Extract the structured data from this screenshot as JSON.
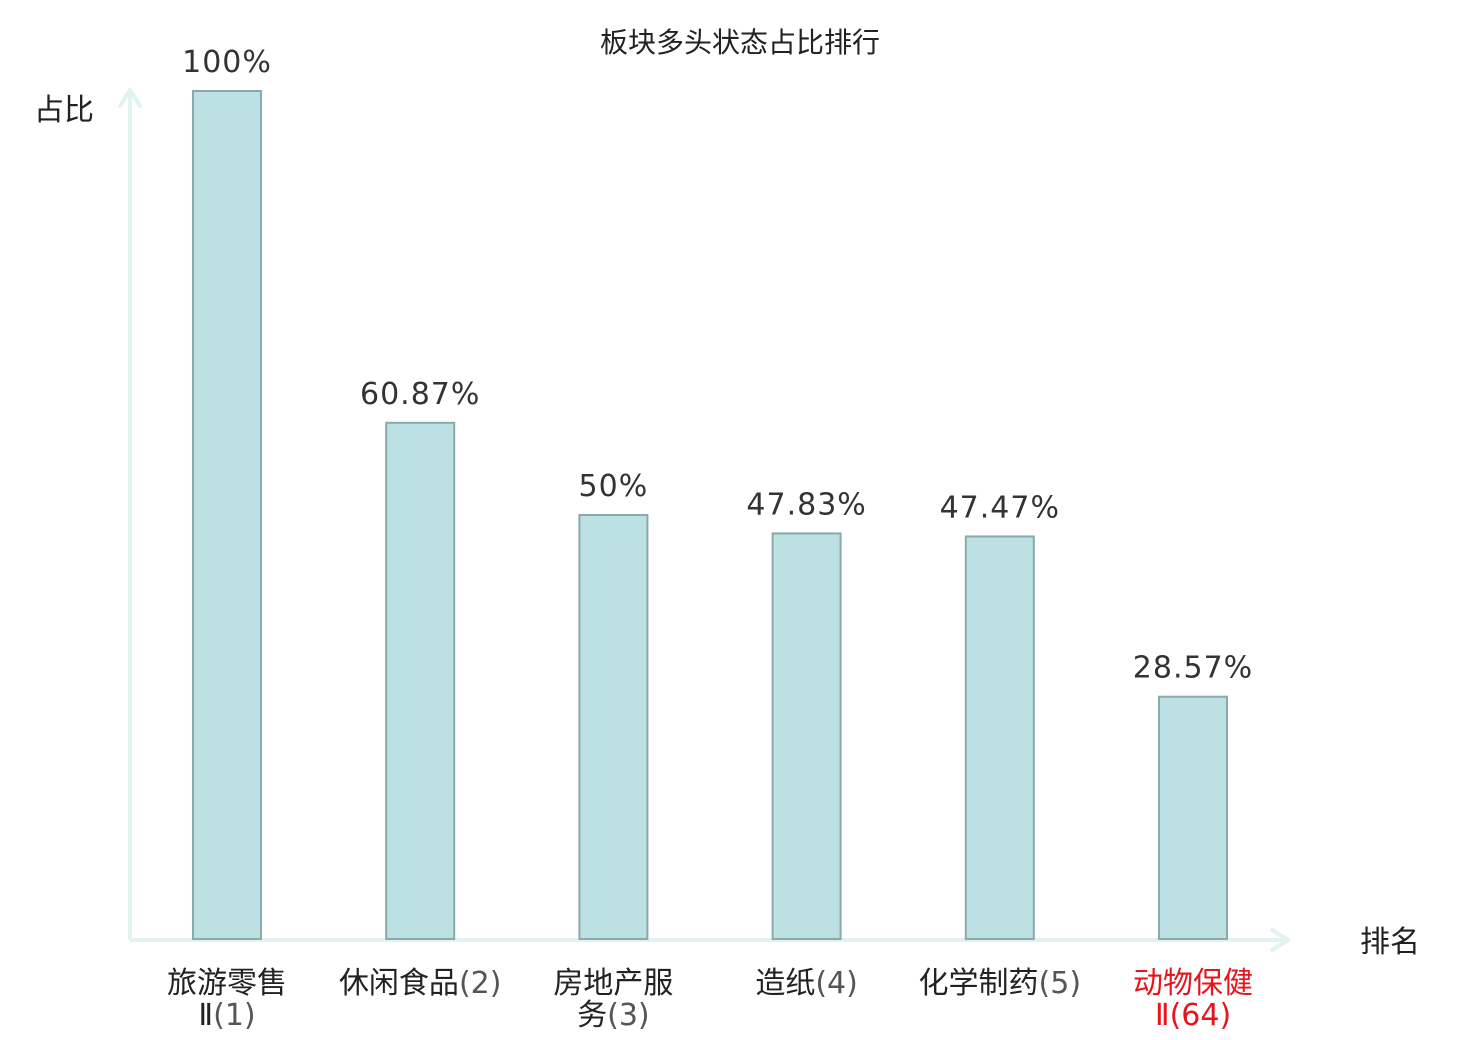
{
  "chart_data": {
    "type": "bar",
    "title": "板块多头状态占比排行",
    "ylabel": "占比",
    "xlabel": "排名",
    "ylim": [
      0,
      100
    ],
    "grid": false,
    "categories": [
      {
        "name_lines": [
          "旅游零售",
          "Ⅱ"
        ],
        "rank": "(1)",
        "highlight": false
      },
      {
        "name_lines": [
          "休闲食品"
        ],
        "rank": "(2)",
        "highlight": false
      },
      {
        "name_lines": [
          "房地产服",
          "务"
        ],
        "rank": "(3)",
        "highlight": false
      },
      {
        "name_lines": [
          "造纸"
        ],
        "rank": "(4)",
        "highlight": false
      },
      {
        "name_lines": [
          "化学制药"
        ],
        "rank": "(5)",
        "highlight": false
      },
      {
        "name_lines": [
          "动物保健",
          "Ⅱ"
        ],
        "rank": "(64)",
        "highlight": true
      }
    ],
    "values": [
      100,
      60.87,
      50,
      47.83,
      47.47,
      28.57
    ],
    "value_labels": [
      "100%",
      "60.87%",
      "50%",
      "47.83%",
      "47.47%",
      "28.57%"
    ],
    "colors": {
      "bar_fill": "#bde0e3",
      "bar_stroke": "#8aa9ab",
      "axis": "#e0f3f0",
      "highlight_text": "#e8141c",
      "text": "#222222",
      "rank_text": "#555555"
    }
  }
}
